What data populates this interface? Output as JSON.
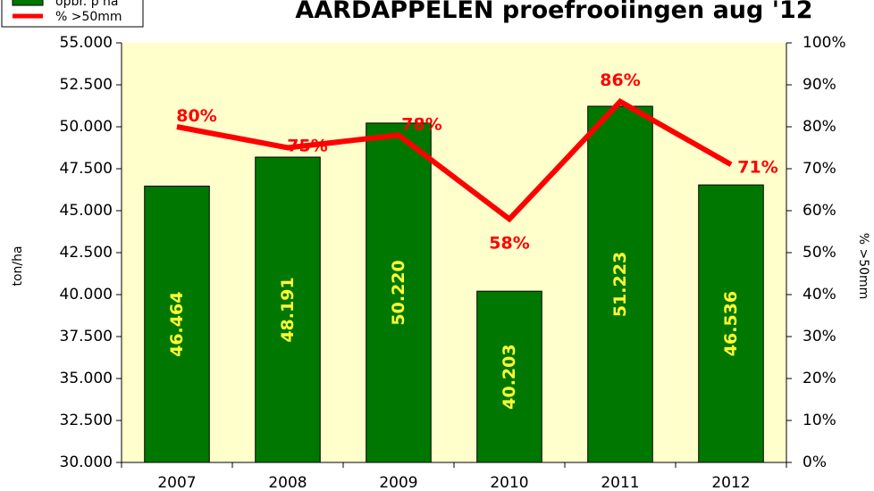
{
  "chart_data": {
    "type": "bar",
    "title": "AARDAPPELEN  proefrooiingen aug '12",
    "categories": [
      "2007",
      "2008",
      "2009",
      "2010",
      "2011",
      "2012"
    ],
    "ylabel": "ton/ha",
    "y2label": "% >50mm",
    "ylim": [
      30000,
      55000
    ],
    "y2lim": [
      0,
      100
    ],
    "y_ticks": [
      "30.000",
      "32.500",
      "35.000",
      "37.500",
      "40.000",
      "42.500",
      "45.000",
      "47.500",
      "50.000",
      "52.500",
      "55.000"
    ],
    "y2_ticks": [
      "0%",
      "10%",
      "20%",
      "30%",
      "40%",
      "50%",
      "60%",
      "70%",
      "80%",
      "90%",
      "100%"
    ],
    "grid": false,
    "legend_position": "top-left",
    "series": [
      {
        "name": "opbr. p ha",
        "type": "bar",
        "axis": "left",
        "color": "#007800",
        "values": [
          46464,
          48191,
          50220,
          40203,
          51223,
          46536
        ],
        "labels": [
          "46.464",
          "48.191",
          "50.220",
          "40.203",
          "51.223",
          "46.536"
        ]
      },
      {
        "name": "% >50mm",
        "type": "line",
        "axis": "right",
        "color": "#ff0000",
        "values": [
          80,
          75,
          78,
          58,
          86,
          71
        ],
        "labels": [
          "80%",
          "75%",
          "78%",
          "58%",
          "86%",
          "71%"
        ]
      }
    ],
    "colors": {
      "plot_background": "#ffffcc",
      "bar_label": "#ffff33"
    }
  }
}
